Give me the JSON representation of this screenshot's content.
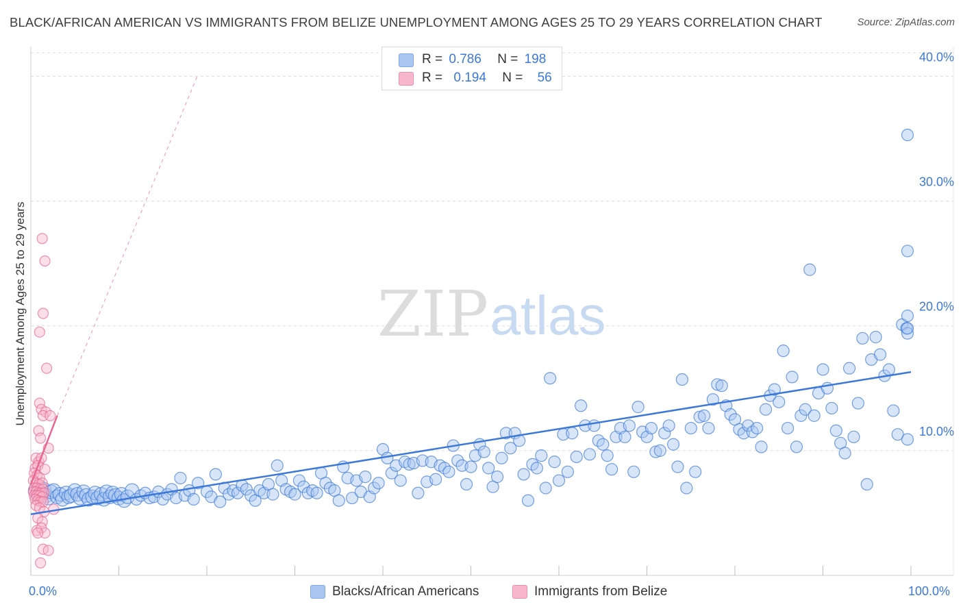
{
  "title": "BLACK/AFRICAN AMERICAN VS IMMIGRANTS FROM BELIZE UNEMPLOYMENT AMONG AGES 25 TO 29 YEARS CORRELATION CHART",
  "source": "Source: ZipAtlas.com",
  "watermark": {
    "zip": "ZIP",
    "atlas": "atlas"
  },
  "colors": {
    "blue": "#3b78d8",
    "blue_fill": "#a9c6f0",
    "pink": "#e8668f",
    "pink_fill": "#f6b6cb",
    "grid": "#dcdcdc"
  },
  "legend": {
    "rows": [
      {
        "r_label": "R =",
        "r_value": "0.786",
        "n_label": "N =",
        "n_value": "198"
      },
      {
        "r_label": "R =",
        "r_value": "0.194",
        "n_label": "N =",
        "n_value": "56"
      }
    ]
  },
  "bottom_legend": [
    "Blacks/African Americans",
    "Immigrants from Belize"
  ],
  "chart_data": {
    "type": "scatter",
    "title": "BLACK/AFRICAN AMERICAN VS IMMIGRANTS FROM BELIZE UNEMPLOYMENT AMONG AGES 25 TO 29 YEARS CORRELATION CHART",
    "xlabel": "",
    "ylabel": "Unemployment Among Ages 25 to 29 years",
    "xlim": [
      0,
      100
    ],
    "ylim": [
      0,
      42
    ],
    "x_tick_labels": {
      "min": "0.0%",
      "max": "100.0%"
    },
    "y_ticks": [
      10,
      20,
      30,
      40
    ],
    "y_tick_labels": [
      "10.0%",
      "20.0%",
      "30.0%",
      "40.0%"
    ],
    "grid": true,
    "series": [
      {
        "name": "Blacks/African Americans",
        "r": 0.786,
        "n": 198,
        "trend": {
          "x": [
            0,
            100
          ],
          "y": [
            4.9,
            16.3
          ]
        },
        "points": [
          [
            0.5,
            6.8
          ],
          [
            0.8,
            6.5
          ],
          [
            1.0,
            7.1
          ],
          [
            1.2,
            6.6
          ],
          [
            1.5,
            6.9
          ],
          [
            1.8,
            6.4
          ],
          [
            2.0,
            6.2
          ],
          [
            2.3,
            6.7
          ],
          [
            2.6,
            6.8
          ],
          [
            3.0,
            6.3
          ],
          [
            3.3,
            6.5
          ],
          [
            3.6,
            6.1
          ],
          [
            4.0,
            6.6
          ],
          [
            4.3,
            6.3
          ],
          [
            4.6,
            6.4
          ],
          [
            5.0,
            6.8
          ],
          [
            5.3,
            6.5
          ],
          [
            5.6,
            6.2
          ],
          [
            6.0,
            6.7
          ],
          [
            6.3,
            6.4
          ],
          [
            6.6,
            6.1
          ],
          [
            7.0,
            6.3
          ],
          [
            7.3,
            6.6
          ],
          [
            7.6,
            6.2
          ],
          [
            8.0,
            6.5
          ],
          [
            8.3,
            6.1
          ],
          [
            8.6,
            6.7
          ],
          [
            9.0,
            6.3
          ],
          [
            9.3,
            6.6
          ],
          [
            9.6,
            6.4
          ],
          [
            10.0,
            6.2
          ],
          [
            10.3,
            6.5
          ],
          [
            10.6,
            6.0
          ],
          [
            11.0,
            6.3
          ],
          [
            11.5,
            6.8
          ],
          [
            12.0,
            6.1
          ],
          [
            12.5,
            6.4
          ],
          [
            13.0,
            6.6
          ],
          [
            13.5,
            6.2
          ],
          [
            14.0,
            6.3
          ],
          [
            14.5,
            6.7
          ],
          [
            15.0,
            6.1
          ],
          [
            15.5,
            6.5
          ],
          [
            16.0,
            6.9
          ],
          [
            16.5,
            6.2
          ],
          [
            17.0,
            7.8
          ],
          [
            17.5,
            6.4
          ],
          [
            18.0,
            6.8
          ],
          [
            18.5,
            6.1
          ],
          [
            19.0,
            7.4
          ],
          [
            20.0,
            6.7
          ],
          [
            20.5,
            6.3
          ],
          [
            21.0,
            8.1
          ],
          [
            21.5,
            5.9
          ],
          [
            22.0,
            7.0
          ],
          [
            22.5,
            6.5
          ],
          [
            23.0,
            6.8
          ],
          [
            23.5,
            6.6
          ],
          [
            24.0,
            7.2
          ],
          [
            24.5,
            6.9
          ],
          [
            25.0,
            6.4
          ],
          [
            25.5,
            6.0
          ],
          [
            26.0,
            6.8
          ],
          [
            26.5,
            6.6
          ],
          [
            27.0,
            7.3
          ],
          [
            27.5,
            6.5
          ],
          [
            28.0,
            8.8
          ],
          [
            28.5,
            7.6
          ],
          [
            29.0,
            6.9
          ],
          [
            29.5,
            6.7
          ],
          [
            30.0,
            6.5
          ],
          [
            30.5,
            7.6
          ],
          [
            31.0,
            7.1
          ],
          [
            31.5,
            6.6
          ],
          [
            32.0,
            6.8
          ],
          [
            32.5,
            6.6
          ],
          [
            33.0,
            8.2
          ],
          [
            33.5,
            7.4
          ],
          [
            34.0,
            7.0
          ],
          [
            34.5,
            6.8
          ],
          [
            35.0,
            6.0
          ],
          [
            35.5,
            8.7
          ],
          [
            36.0,
            7.8
          ],
          [
            36.5,
            6.2
          ],
          [
            37.0,
            7.6
          ],
          [
            37.5,
            6.7
          ],
          [
            38.0,
            7.9
          ],
          [
            38.5,
            6.3
          ],
          [
            39.0,
            7.0
          ],
          [
            39.5,
            7.4
          ],
          [
            40.0,
            10.1
          ],
          [
            40.5,
            9.4
          ],
          [
            41.0,
            8.2
          ],
          [
            41.5,
            8.8
          ],
          [
            42.0,
            7.6
          ],
          [
            42.5,
            9.1
          ],
          [
            43.0,
            8.9
          ],
          [
            43.5,
            9.0
          ],
          [
            44.0,
            6.6
          ],
          [
            44.5,
            9.2
          ],
          [
            45.0,
            7.5
          ],
          [
            45.5,
            9.1
          ],
          [
            46.0,
            7.7
          ],
          [
            46.5,
            8.8
          ],
          [
            47.0,
            8.6
          ],
          [
            47.5,
            8.3
          ],
          [
            48.0,
            10.4
          ],
          [
            48.5,
            9.2
          ],
          [
            49.0,
            8.8
          ],
          [
            49.5,
            7.3
          ],
          [
            50.0,
            8.7
          ],
          [
            50.5,
            9.6
          ],
          [
            51.0,
            10.5
          ],
          [
            51.5,
            9.9
          ],
          [
            52.0,
            8.6
          ],
          [
            52.5,
            7.1
          ],
          [
            53.0,
            7.9
          ],
          [
            53.5,
            9.4
          ],
          [
            54.0,
            11.4
          ],
          [
            54.5,
            10.2
          ],
          [
            55.0,
            11.4
          ],
          [
            55.5,
            10.8
          ],
          [
            56.0,
            8.1
          ],
          [
            56.5,
            6.0
          ],
          [
            57.0,
            8.9
          ],
          [
            57.5,
            8.6
          ],
          [
            58.0,
            9.6
          ],
          [
            58.5,
            7.0
          ],
          [
            59.0,
            15.8
          ],
          [
            59.5,
            9.1
          ],
          [
            60.0,
            7.6
          ],
          [
            60.5,
            11.3
          ],
          [
            61.0,
            8.3
          ],
          [
            61.5,
            11.4
          ],
          [
            62.0,
            9.5
          ],
          [
            62.5,
            13.6
          ],
          [
            63.0,
            12.0
          ],
          [
            63.5,
            9.7
          ],
          [
            64.0,
            12.0
          ],
          [
            64.5,
            10.8
          ],
          [
            65.0,
            10.5
          ],
          [
            65.5,
            9.6
          ],
          [
            66.0,
            8.5
          ],
          [
            66.5,
            11.1
          ],
          [
            67.0,
            11.8
          ],
          [
            67.5,
            11.1
          ],
          [
            68.0,
            12.0
          ],
          [
            68.5,
            8.3
          ],
          [
            69.0,
            13.5
          ],
          [
            69.5,
            11.5
          ],
          [
            70.0,
            11.1
          ],
          [
            70.5,
            11.8
          ],
          [
            71.0,
            9.9
          ],
          [
            71.5,
            10.0
          ],
          [
            72.0,
            11.4
          ],
          [
            72.5,
            12.0
          ],
          [
            73.0,
            10.5
          ],
          [
            73.5,
            8.7
          ],
          [
            74.0,
            15.7
          ],
          [
            74.5,
            7.0
          ],
          [
            75.0,
            11.8
          ],
          [
            75.5,
            8.3
          ],
          [
            76.0,
            12.7
          ],
          [
            76.5,
            12.8
          ],
          [
            77.0,
            11.8
          ],
          [
            77.5,
            14.1
          ],
          [
            78.0,
            15.3
          ],
          [
            78.5,
            15.2
          ],
          [
            79.0,
            13.6
          ],
          [
            79.5,
            12.9
          ],
          [
            80.0,
            12.5
          ],
          [
            80.5,
            11.7
          ],
          [
            81.0,
            11.4
          ],
          [
            81.5,
            12.0
          ],
          [
            82.0,
            11.5
          ],
          [
            82.5,
            11.8
          ],
          [
            83.0,
            10.3
          ],
          [
            83.5,
            13.3
          ],
          [
            84.0,
            14.4
          ],
          [
            84.5,
            14.9
          ],
          [
            85.0,
            13.9
          ],
          [
            85.5,
            18.0
          ],
          [
            86.0,
            11.8
          ],
          [
            86.5,
            15.9
          ],
          [
            87.0,
            10.3
          ],
          [
            87.5,
            12.8
          ],
          [
            88.0,
            13.3
          ],
          [
            88.5,
            24.5
          ],
          [
            89.0,
            12.8
          ],
          [
            89.5,
            14.6
          ],
          [
            90.0,
            16.5
          ],
          [
            90.5,
            15.0
          ],
          [
            91.0,
            13.4
          ],
          [
            91.5,
            11.6
          ],
          [
            92.0,
            10.6
          ],
          [
            92.5,
            9.8
          ],
          [
            93.0,
            16.6
          ],
          [
            93.5,
            11.1
          ],
          [
            94.0,
            13.8
          ],
          [
            94.5,
            19.0
          ],
          [
            95.0,
            7.3
          ],
          [
            95.5,
            17.3
          ],
          [
            96.0,
            19.1
          ],
          [
            96.5,
            17.7
          ],
          [
            97.0,
            16.0
          ],
          [
            97.5,
            16.5
          ],
          [
            98.0,
            13.2
          ],
          [
            98.5,
            11.3
          ],
          [
            99.0,
            20.1
          ],
          [
            99.5,
            19.8
          ],
          [
            100.0,
            19.4
          ],
          [
            101.0,
            26.0
          ],
          [
            101.5,
            35.3
          ],
          [
            102.5,
            10.9
          ],
          [
            103.0,
            20.8
          ],
          [
            103.5,
            19.8
          ]
        ]
      },
      {
        "name": "Immigrants from Belize",
        "r": 0.194,
        "n": 56,
        "trend": {
          "x": [
            0,
            3.0
          ],
          "y": [
            7.3,
            12.8
          ]
        },
        "trend_ext": {
          "x": [
            3.0,
            18.9
          ],
          "y": [
            12.8,
            40.0
          ]
        },
        "points": [
          [
            1.3,
            27.0
          ],
          [
            1.6,
            25.2
          ],
          [
            1.4,
            21.0
          ],
          [
            1.0,
            19.5
          ],
          [
            1.8,
            16.6
          ],
          [
            1.0,
            13.8
          ],
          [
            1.2,
            13.3
          ],
          [
            1.7,
            13.1
          ],
          [
            1.4,
            12.8
          ],
          [
            2.2,
            12.8
          ],
          [
            0.9,
            11.6
          ],
          [
            1.1,
            11.0
          ],
          [
            2.0,
            10.2
          ],
          [
            0.6,
            9.4
          ],
          [
            0.9,
            9.1
          ],
          [
            1.2,
            9.4
          ],
          [
            0.5,
            8.6
          ],
          [
            0.8,
            8.8
          ],
          [
            1.6,
            8.5
          ],
          [
            0.4,
            8.2
          ],
          [
            0.7,
            8.0
          ],
          [
            1.0,
            7.8
          ],
          [
            0.3,
            7.6
          ],
          [
            0.6,
            7.4
          ],
          [
            0.9,
            7.3
          ],
          [
            1.3,
            7.4
          ],
          [
            0.4,
            7.0
          ],
          [
            0.7,
            7.0
          ],
          [
            1.0,
            6.9
          ],
          [
            1.4,
            6.9
          ],
          [
            0.3,
            6.7
          ],
          [
            0.6,
            6.7
          ],
          [
            0.9,
            6.6
          ],
          [
            1.2,
            6.6
          ],
          [
            1.5,
            6.6
          ],
          [
            0.4,
            6.4
          ],
          [
            0.7,
            6.4
          ],
          [
            1.0,
            6.4
          ],
          [
            1.3,
            6.3
          ],
          [
            0.5,
            6.1
          ],
          [
            0.8,
            6.0
          ],
          [
            1.1,
            5.9
          ],
          [
            1.4,
            5.9
          ],
          [
            0.6,
            5.6
          ],
          [
            1.0,
            5.4
          ],
          [
            1.5,
            5.1
          ],
          [
            2.6,
            5.3
          ],
          [
            0.8,
            4.6
          ],
          [
            1.3,
            4.3
          ],
          [
            0.7,
            3.6
          ],
          [
            1.2,
            3.8
          ],
          [
            1.6,
            3.4
          ],
          [
            0.8,
            3.4
          ],
          [
            1.4,
            2.1
          ],
          [
            2.0,
            2.0
          ],
          [
            1.1,
            1.0
          ]
        ]
      }
    ]
  }
}
